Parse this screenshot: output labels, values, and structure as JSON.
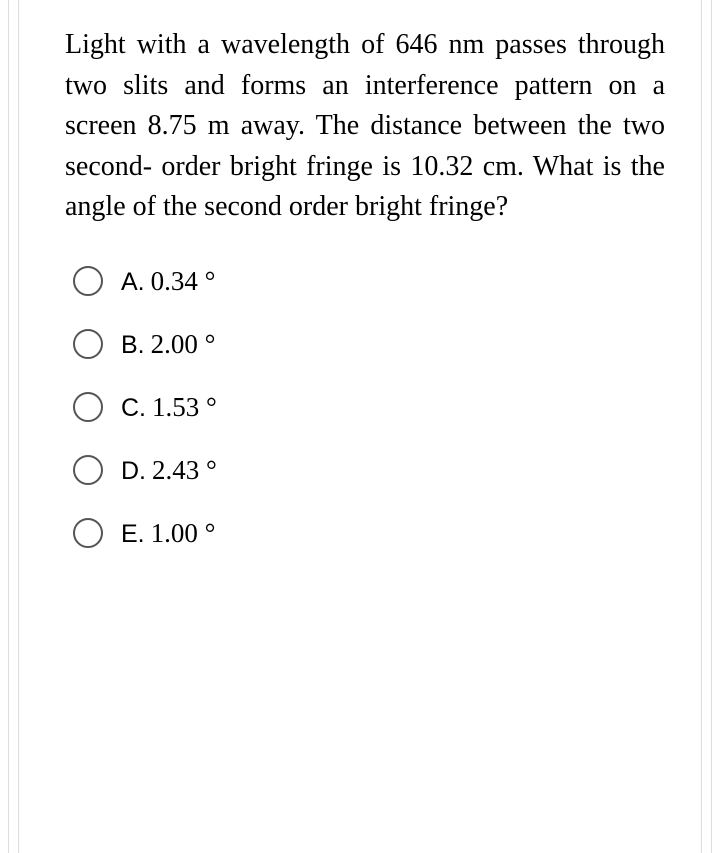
{
  "question": {
    "text": "Light with a wavelength of 646 nm passes through two slits and forms an interference pattern on a screen 8.75 m away. The distance between the two second- order bright fringe is 10.32 cm. What is the angle of the second order bright fringe?",
    "font_size": 28,
    "color": "#000000"
  },
  "options": [
    {
      "letter": "A.",
      "value": "0.34 °"
    },
    {
      "letter": "B.",
      "value": "2.00 °"
    },
    {
      "letter": "C.",
      "value": "1.53 °"
    },
    {
      "letter": "D.",
      "value": "2.43 °"
    },
    {
      "letter": "E.",
      "value": "1.00 °"
    }
  ],
  "styling": {
    "background": "#ffffff",
    "border_color": "#dddddd",
    "radio_border": "#555555",
    "radio_size": 30,
    "option_font_size": 25,
    "value_font_size": 27
  }
}
